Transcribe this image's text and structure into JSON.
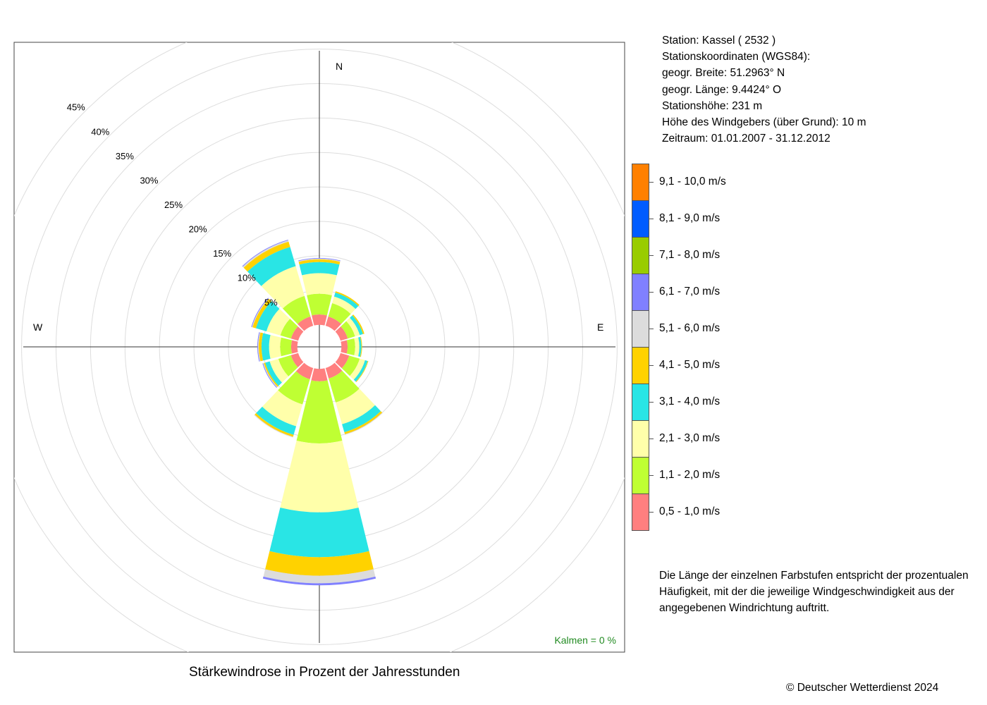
{
  "station": {
    "line_station": "Station:  Kassel  ( 2532 )",
    "line_coords": "Stationskoordinaten (WGS84):",
    "line_lat": "geogr. Breite: 51.2963° N",
    "line_lon": "geogr. Länge:   9.4424° O",
    "line_height": "Stationshöhe: 231 m",
    "line_sensor": "Höhe des Windgebers (über Grund): 10 m",
    "line_period": "Zeitraum: 01.01.2007 - 31.12.2012"
  },
  "note": "Die Länge der einzelnen Farbstufen entspricht der prozentualen Häufigkeit, mit der die jeweilige Windgeschwindigkeit aus der angegebenen Windrichtung auftritt.",
  "copyright": "© Deutscher Wetterdienst  2024",
  "chart_data": {
    "type": "windrose",
    "title": "Stärkewindrose in Prozent der Jahresstunden",
    "calm_label": "Kalmen  =  0 %",
    "compass": {
      "N": "N",
      "E": "E",
      "W": "W"
    },
    "ring_values": [
      5,
      10,
      15,
      20,
      25,
      30,
      35,
      40,
      45
    ],
    "ring_labels": [
      "5%",
      "10%",
      "15%",
      "20%",
      "25%",
      "30%",
      "35%",
      "40%",
      "45%"
    ],
    "radius_max": 45,
    "inner_offset": 3.2,
    "speed_classes": [
      {
        "label": "0,5 - 1,0 m/s",
        "color": "#ff7f7f"
      },
      {
        "label": "1,1 - 2,0 m/s",
        "color": "#bfff33"
      },
      {
        "label": "2,1 - 3,0 m/s",
        "color": "#ffffaa"
      },
      {
        "label": "3,1 - 4,0 m/s",
        "color": "#29e5e5"
      },
      {
        "label": "4,1 - 5,0 m/s",
        "color": "#ffd200"
      },
      {
        "label": "5,1 - 6,0 m/s",
        "color": "#dcdcdc"
      },
      {
        "label": "6,1 - 7,0 m/s",
        "color": "#8080ff"
      },
      {
        "label": "7,1 - 8,0 m/s",
        "color": "#99cc00"
      },
      {
        "label": "8,1 - 9,0 m/s",
        "color": "#005cff"
      },
      {
        "label": "9,1 - 10,0 m/s",
        "color": "#ff8000"
      }
    ],
    "directions": [
      0,
      30,
      60,
      90,
      120,
      150,
      180,
      210,
      240,
      270,
      300,
      330
    ],
    "sector_width_deg": 30,
    "frequencies": [
      [
        1.5,
        3.0,
        3.0,
        1.6,
        0.4,
        0.1,
        0.1,
        0,
        0,
        0
      ],
      [
        1.4,
        2.0,
        1.0,
        0.6,
        0.2,
        0,
        0,
        0,
        0,
        0
      ],
      [
        1.1,
        1.1,
        0.7,
        0.5,
        0.2,
        0,
        0,
        0,
        0,
        0
      ],
      [
        0.9,
        1.1,
        0.6,
        0.3,
        0.1,
        0,
        0,
        0,
        0,
        0
      ],
      [
        1.3,
        1.6,
        0.8,
        0.4,
        0.1,
        0,
        0,
        0,
        0,
        0
      ],
      [
        1.6,
        3.6,
        3.3,
        1.2,
        0.3,
        0.1,
        0,
        0,
        0,
        0
      ],
      [
        1.8,
        9.0,
        10.0,
        6.5,
        2.7,
        1.1,
        0.3,
        0,
        0,
        0
      ],
      [
        1.7,
        3.8,
        3.3,
        1.3,
        0.3,
        0.1,
        0,
        0,
        0,
        0
      ],
      [
        1.1,
        1.9,
        1.3,
        0.7,
        0.2,
        0.1,
        0.1,
        0,
        0,
        0
      ],
      [
        0.9,
        1.6,
        1.6,
        1.1,
        0.4,
        0.1,
        0.1,
        0,
        0,
        0
      ],
      [
        1.1,
        1.6,
        2.1,
        1.6,
        0.5,
        0.1,
        0.1,
        0,
        0,
        0
      ],
      [
        1.4,
        3.1,
        4.5,
        2.9,
        0.8,
        0.2,
        0.1,
        0,
        0,
        0
      ]
    ]
  }
}
